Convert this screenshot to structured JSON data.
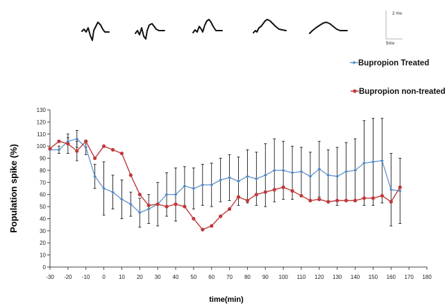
{
  "chart_data": {
    "type": "line",
    "xlabel": "time(min)",
    "ylabel": "Population spike (%)",
    "xlim": [
      -30,
      180
    ],
    "ylim": [
      0,
      130
    ],
    "x_ticks": [
      -30,
      -20,
      -10,
      0,
      10,
      20,
      30,
      40,
      50,
      60,
      70,
      80,
      90,
      100,
      110,
      120,
      130,
      140,
      150,
      160,
      170,
      180
    ],
    "y_ticks": [
      0,
      10,
      20,
      30,
      40,
      50,
      60,
      70,
      80,
      90,
      100,
      110,
      120,
      130
    ],
    "legend_position": "right, above plot",
    "grid": false,
    "scale_bar": {
      "vertical_label": "2 mv",
      "horizontal_label": "5mv"
    },
    "series": [
      {
        "name": "Bupropion Treated",
        "color": "#6d9acb",
        "marker": "diamond",
        "points": [
          {
            "x": -30,
            "y": 97,
            "err": 0
          },
          {
            "x": -25,
            "y": 97,
            "err": 3
          },
          {
            "x": -20,
            "y": 104,
            "err": 3
          },
          {
            "x": -15,
            "y": 106,
            "err": 7
          },
          {
            "x": -10,
            "y": 99,
            "err": 6
          },
          {
            "x": -5,
            "y": 75,
            "err": 10
          },
          {
            "x": 0,
            "y": 65,
            "err": 22
          },
          {
            "x": 5,
            "y": 62,
            "err": 14
          },
          {
            "x": 10,
            "y": 56,
            "err": 16
          },
          {
            "x": 15,
            "y": 52,
            "err": 10
          },
          {
            "x": 20,
            "y": 45,
            "err": 12
          },
          {
            "x": 25,
            "y": 48,
            "err": 12
          },
          {
            "x": 30,
            "y": 52,
            "err": 18
          },
          {
            "x": 35,
            "y": 60,
            "err": 18
          },
          {
            "x": 40,
            "y": 60,
            "err": 22
          },
          {
            "x": 45,
            "y": 67,
            "err": 16
          },
          {
            "x": 50,
            "y": 65,
            "err": 17
          },
          {
            "x": 55,
            "y": 68,
            "err": 17
          },
          {
            "x": 60,
            "y": 68,
            "err": 18
          },
          {
            "x": 65,
            "y": 72,
            "err": 18
          },
          {
            "x": 70,
            "y": 74,
            "err": 19
          },
          {
            "x": 75,
            "y": 71,
            "err": 20
          },
          {
            "x": 80,
            "y": 75,
            "err": 22
          },
          {
            "x": 85,
            "y": 73,
            "err": 22
          },
          {
            "x": 90,
            "y": 76,
            "err": 26
          },
          {
            "x": 95,
            "y": 80,
            "err": 26
          },
          {
            "x": 100,
            "y": 80,
            "err": 24
          },
          {
            "x": 105,
            "y": 78,
            "err": 22
          },
          {
            "x": 110,
            "y": 79,
            "err": 20
          },
          {
            "x": 115,
            "y": 75,
            "err": 20
          },
          {
            "x": 120,
            "y": 81,
            "err": 23
          },
          {
            "x": 125,
            "y": 76,
            "err": 21
          },
          {
            "x": 130,
            "y": 75,
            "err": 24
          },
          {
            "x": 135,
            "y": 79,
            "err": 24
          },
          {
            "x": 140,
            "y": 80,
            "err": 26
          },
          {
            "x": 145,
            "y": 86,
            "err": 35
          },
          {
            "x": 150,
            "y": 87,
            "err": 36
          },
          {
            "x": 155,
            "y": 88,
            "err": 35
          },
          {
            "x": 160,
            "y": 64,
            "err": 30
          },
          {
            "x": 165,
            "y": 63,
            "err": 27
          }
        ]
      },
      {
        "name": "Bupropion non-treated",
        "color": "#c0393b",
        "marker": "circle",
        "points": [
          {
            "x": -30,
            "y": 98,
            "err": 0
          },
          {
            "x": -25,
            "y": 104,
            "err": 0
          },
          {
            "x": -20,
            "y": 102,
            "err": 8
          },
          {
            "x": -15,
            "y": 96,
            "err": 8
          },
          {
            "x": -10,
            "y": 104,
            "err": 0
          },
          {
            "x": -5,
            "y": 90,
            "err": 0
          },
          {
            "x": 0,
            "y": 100,
            "err": 0
          },
          {
            "x": 5,
            "y": 97,
            "err": 0
          },
          {
            "x": 10,
            "y": 94,
            "err": 0
          },
          {
            "x": 15,
            "y": 76,
            "err": 0
          },
          {
            "x": 20,
            "y": 60,
            "err": 0
          },
          {
            "x": 25,
            "y": 51,
            "err": 0
          },
          {
            "x": 30,
            "y": 52,
            "err": 0
          },
          {
            "x": 35,
            "y": 50,
            "err": 0
          },
          {
            "x": 40,
            "y": 52,
            "err": 0
          },
          {
            "x": 45,
            "y": 50,
            "err": 0
          },
          {
            "x": 50,
            "y": 40,
            "err": 0
          },
          {
            "x": 55,
            "y": 31,
            "err": 0
          },
          {
            "x": 60,
            "y": 34,
            "err": 0
          },
          {
            "x": 65,
            "y": 42,
            "err": 0
          },
          {
            "x": 70,
            "y": 48,
            "err": 0
          },
          {
            "x": 75,
            "y": 58,
            "err": 0
          },
          {
            "x": 80,
            "y": 55,
            "err": 0
          },
          {
            "x": 85,
            "y": 60,
            "err": 0
          },
          {
            "x": 90,
            "y": 62,
            "err": 0
          },
          {
            "x": 95,
            "y": 64,
            "err": 0
          },
          {
            "x": 100,
            "y": 66,
            "err": 0
          },
          {
            "x": 105,
            "y": 63,
            "err": 0
          },
          {
            "x": 110,
            "y": 59,
            "err": 0
          },
          {
            "x": 115,
            "y": 55,
            "err": 0
          },
          {
            "x": 120,
            "y": 56,
            "err": 0
          },
          {
            "x": 125,
            "y": 54,
            "err": 0
          },
          {
            "x": 130,
            "y": 55,
            "err": 0
          },
          {
            "x": 135,
            "y": 55,
            "err": 0
          },
          {
            "x": 140,
            "y": 55,
            "err": 0
          },
          {
            "x": 145,
            "y": 57,
            "err": 0
          },
          {
            "x": 150,
            "y": 57,
            "err": 0
          },
          {
            "x": 155,
            "y": 59,
            "err": 0
          },
          {
            "x": 160,
            "y": 54,
            "err": 0
          },
          {
            "x": 165,
            "y": 66,
            "err": 0
          }
        ]
      }
    ]
  }
}
